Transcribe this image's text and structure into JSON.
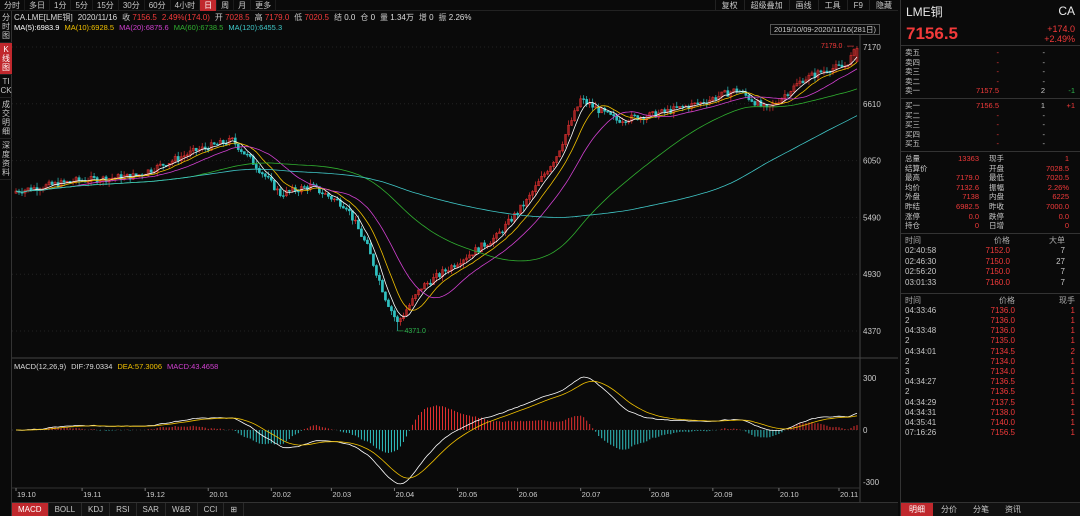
{
  "toolbar": {
    "tabs": [
      "分时",
      "多日",
      "1分",
      "5分",
      "15分",
      "30分",
      "60分",
      "4小时",
      "日",
      "周",
      "月",
      "更多"
    ],
    "active_tab": 8,
    "right": [
      "复权",
      "超级叠加",
      "画线",
      "工具",
      "F9",
      "隐藏"
    ]
  },
  "sidebar": {
    "items": [
      "分时图",
      "K线图",
      "TICK",
      "成交明细",
      "深度资料"
    ],
    "active": 1
  },
  "info": {
    "symbol": "CA.LME[LME铜]",
    "date": "2020/11/16",
    "close_label": "收",
    "close": "7156.5",
    "change_pct": "2.49%(174.0)",
    "open_label": "开",
    "open": "7028.5",
    "high_label": "高",
    "high": "7179.0",
    "low_label": "低",
    "low": "7020.5",
    "settle_label": "结",
    "settle": "0.0",
    "hold_label": "仓",
    "hold": "0",
    "vol_label": "量",
    "vol": "1.34万",
    "incr_label": "增",
    "incr": "0",
    "amp_label": "振",
    "amp": "2.26%"
  },
  "ma": {
    "ma5": "MA(5):6983.9",
    "ma10": "MA(10):6928.5",
    "ma20": "MA(20):6875.6",
    "ma60": "MA(60):6738.5",
    "ma120": "MA(120):6455.3"
  },
  "range_label": "2019/10/09-2020/11/16(281日)",
  "colors": {
    "ma5": "#ffffff",
    "ma10": "#f0c000",
    "ma20": "#d040d0",
    "ma60": "#30b030",
    "ma120": "#40c8c8",
    "up": "#e03030",
    "down": "#30c0c0"
  },
  "price_axis": [
    "7170",
    "6610",
    "6050",
    "5490",
    "4930",
    "4370"
  ],
  "macd_axis": [
    "300",
    "0",
    "-300"
  ],
  "annotations": {
    "high": "7179.0",
    "low": "4371.0"
  },
  "date_axis": [
    "19.10",
    "19.11",
    "19.12",
    "20.01",
    "20.02",
    "20.03",
    "20.04",
    "20.05",
    "20.06",
    "20.07",
    "20.08",
    "20.09",
    "20.10",
    "20.11"
  ],
  "macd": {
    "title": "MACD(12,26,9)",
    "dif": "DIF:79.0334",
    "dea": "DEA:57.3006",
    "macd": "MACD:43.4658"
  },
  "bottom_tabs": [
    "MACD",
    "BOLL",
    "KDJ",
    "RSI",
    "SAR",
    "W&R",
    "CCI"
  ],
  "panel": {
    "name": "LME铜",
    "code": "CA",
    "price": "7156.5",
    "change": "+174.0",
    "change_pct": "+2.49%",
    "asks": [
      {
        "label": "卖五",
        "price": "-",
        "vol": "-",
        "chg": ""
      },
      {
        "label": "卖四",
        "price": "-",
        "vol": "-",
        "chg": ""
      },
      {
        "label": "卖三",
        "price": "-",
        "vol": "-",
        "chg": ""
      },
      {
        "label": "卖二",
        "price": "-",
        "vol": "-",
        "chg": ""
      },
      {
        "label": "卖一",
        "price": "7157.5",
        "vol": "2",
        "chg": "-1"
      }
    ],
    "bids": [
      {
        "label": "买一",
        "price": "7156.5",
        "vol": "1",
        "chg": "+1"
      },
      {
        "label": "买二",
        "price": "-",
        "vol": "-",
        "chg": ""
      },
      {
        "label": "买三",
        "price": "-",
        "vol": "-",
        "chg": ""
      },
      {
        "label": "买四",
        "price": "-",
        "vol": "-",
        "chg": ""
      },
      {
        "label": "买五",
        "price": "-",
        "vol": "-",
        "chg": ""
      }
    ],
    "stats": [
      [
        "总量",
        "13363",
        "现手",
        "1"
      ],
      [
        "结算价",
        "",
        "开盘",
        "7028.5"
      ],
      [
        "最高",
        "7179.0",
        "最低",
        "7020.5"
      ],
      [
        "均价",
        "7132.6",
        "振幅",
        "2.26%"
      ],
      [
        "外盘",
        "7138",
        "内盘",
        "6225"
      ],
      [
        "昨结",
        "6982.5",
        "昨收",
        "7000.0"
      ],
      [
        "涨停",
        "0.0",
        "跌停",
        "0.0"
      ],
      [
        "持仓",
        "0",
        "日增",
        "0"
      ]
    ],
    "trade_header": [
      "时间",
      "价格",
      "大单"
    ],
    "trades": [
      [
        "02:40:58",
        "7152.0",
        "7"
      ],
      [
        "02:46:30",
        "7150.0",
        "27"
      ],
      [
        "02:56:20",
        "7150.0",
        "7"
      ],
      [
        "03:01:33",
        "7160.0",
        "7"
      ]
    ],
    "tick_header": [
      "时间",
      "价格",
      "现手"
    ],
    "ticks": [
      [
        "04:33:46",
        "7136.0",
        "1"
      ],
      [
        "2",
        "7136.0",
        "1"
      ],
      [
        "04:33:48",
        "7136.0",
        "1"
      ],
      [
        "2",
        "7135.0",
        "1"
      ],
      [
        "04:34:01",
        "7134.5",
        "2"
      ],
      [
        "2",
        "7134.0",
        "1"
      ],
      [
        "3",
        "7134.0",
        "1"
      ],
      [
        "04:34:27",
        "7136.5",
        "1"
      ],
      [
        "2",
        "7136.5",
        "1"
      ],
      [
        "04:34:29",
        "7137.5",
        "1"
      ],
      [
        "04:34:31",
        "7138.0",
        "1"
      ],
      [
        "04:35:41",
        "7140.0",
        "1"
      ],
      [
        "07:16:26",
        "7156.5",
        "1"
      ]
    ],
    "bottom": [
      "明细",
      "分价",
      "分笔",
      "资讯"
    ]
  }
}
